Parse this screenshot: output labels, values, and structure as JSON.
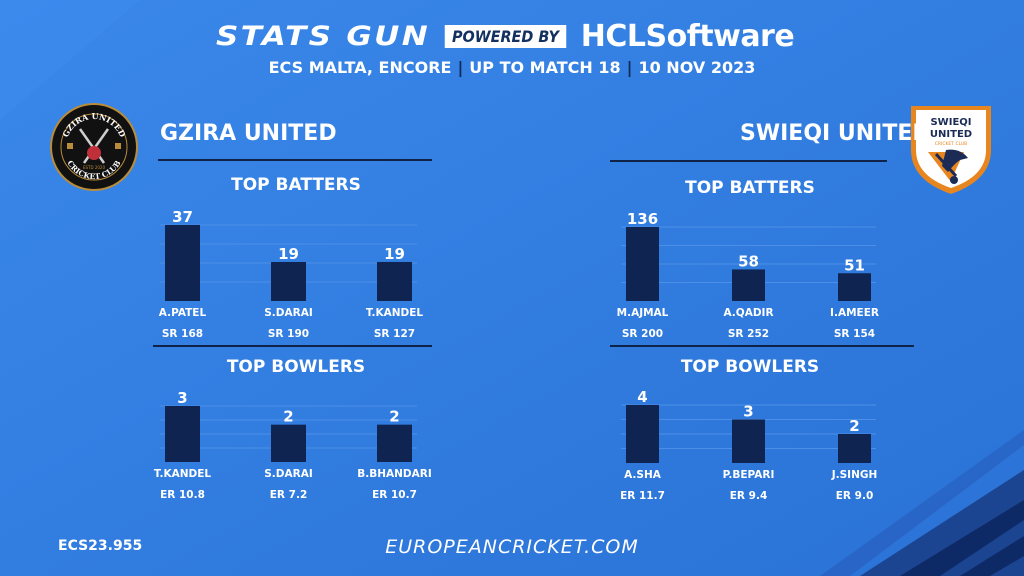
{
  "header": {
    "brand_left": "STATS GUN",
    "brand_powered": "POWERED BY",
    "brand_right": "HCLSoftware",
    "subtitle_parts": [
      "ECS MALTA, ENCORE",
      "UP TO MATCH 18",
      "10 NOV 2023"
    ]
  },
  "teams": [
    {
      "name": "GZIRA UNITED",
      "logo_text_top": "GZIRA UNITED",
      "logo_text_bottom": "CRICKET CLUB",
      "logo_text_estd": "ESTD 2020",
      "batters_title": "TOP BATTERS",
      "bowlers_title": "TOP BOWLERS"
    },
    {
      "name": "SWIEQI UNITED",
      "logo_text_top": "SWIEQI",
      "logo_text_mid": "UNITED",
      "logo_text_bottom": "CRICKET CLUB",
      "batters_title": "TOP BATTERS",
      "bowlers_title": "TOP BOWLERS"
    }
  ],
  "footer": {
    "code": "ECS23.955",
    "site": "EUROPEANCRICKET.COM"
  },
  "colors": {
    "background": "#2f7ce0",
    "bar": "#0f2450",
    "rule": "#0e2347",
    "grid": "#4d8fe6"
  },
  "chart_data": [
    {
      "type": "bar",
      "title": "TOP BATTERS",
      "team": "GZIRA UNITED",
      "categories": [
        "A.PATEL",
        "S.DARAI",
        "T.KANDEL"
      ],
      "values": [
        37,
        19,
        19
      ],
      "sublabels": [
        "SR 168",
        "SR 190",
        "SR 127"
      ],
      "ylim": [
        0,
        37
      ],
      "grid": true
    },
    {
      "type": "bar",
      "title": "TOP BOWLERS",
      "team": "GZIRA UNITED",
      "categories": [
        "T.KANDEL",
        "S.DARAI",
        "B.BHANDARI"
      ],
      "values": [
        3,
        2,
        2
      ],
      "sublabels": [
        "ER 10.8",
        "ER 7.2",
        "ER 10.7"
      ],
      "ylim": [
        0,
        3
      ],
      "grid": true
    },
    {
      "type": "bar",
      "title": "TOP BATTERS",
      "team": "SWIEQI UNITED",
      "categories": [
        "M.AJMAL",
        "A.QADIR",
        "I.AMEER"
      ],
      "values": [
        136,
        58,
        51
      ],
      "sublabels": [
        "SR 200",
        "SR 252",
        "SR 154"
      ],
      "ylim": [
        0,
        136
      ],
      "grid": true
    },
    {
      "type": "bar",
      "title": "TOP BOWLERS",
      "team": "SWIEQI UNITED",
      "categories": [
        "A.SHA",
        "P.BEPARI",
        "J.SINGH"
      ],
      "values": [
        4,
        3,
        2
      ],
      "sublabels": [
        "ER 11.7",
        "ER 9.4",
        "ER 9.0"
      ],
      "ylim": [
        0,
        4
      ],
      "grid": true
    }
  ]
}
